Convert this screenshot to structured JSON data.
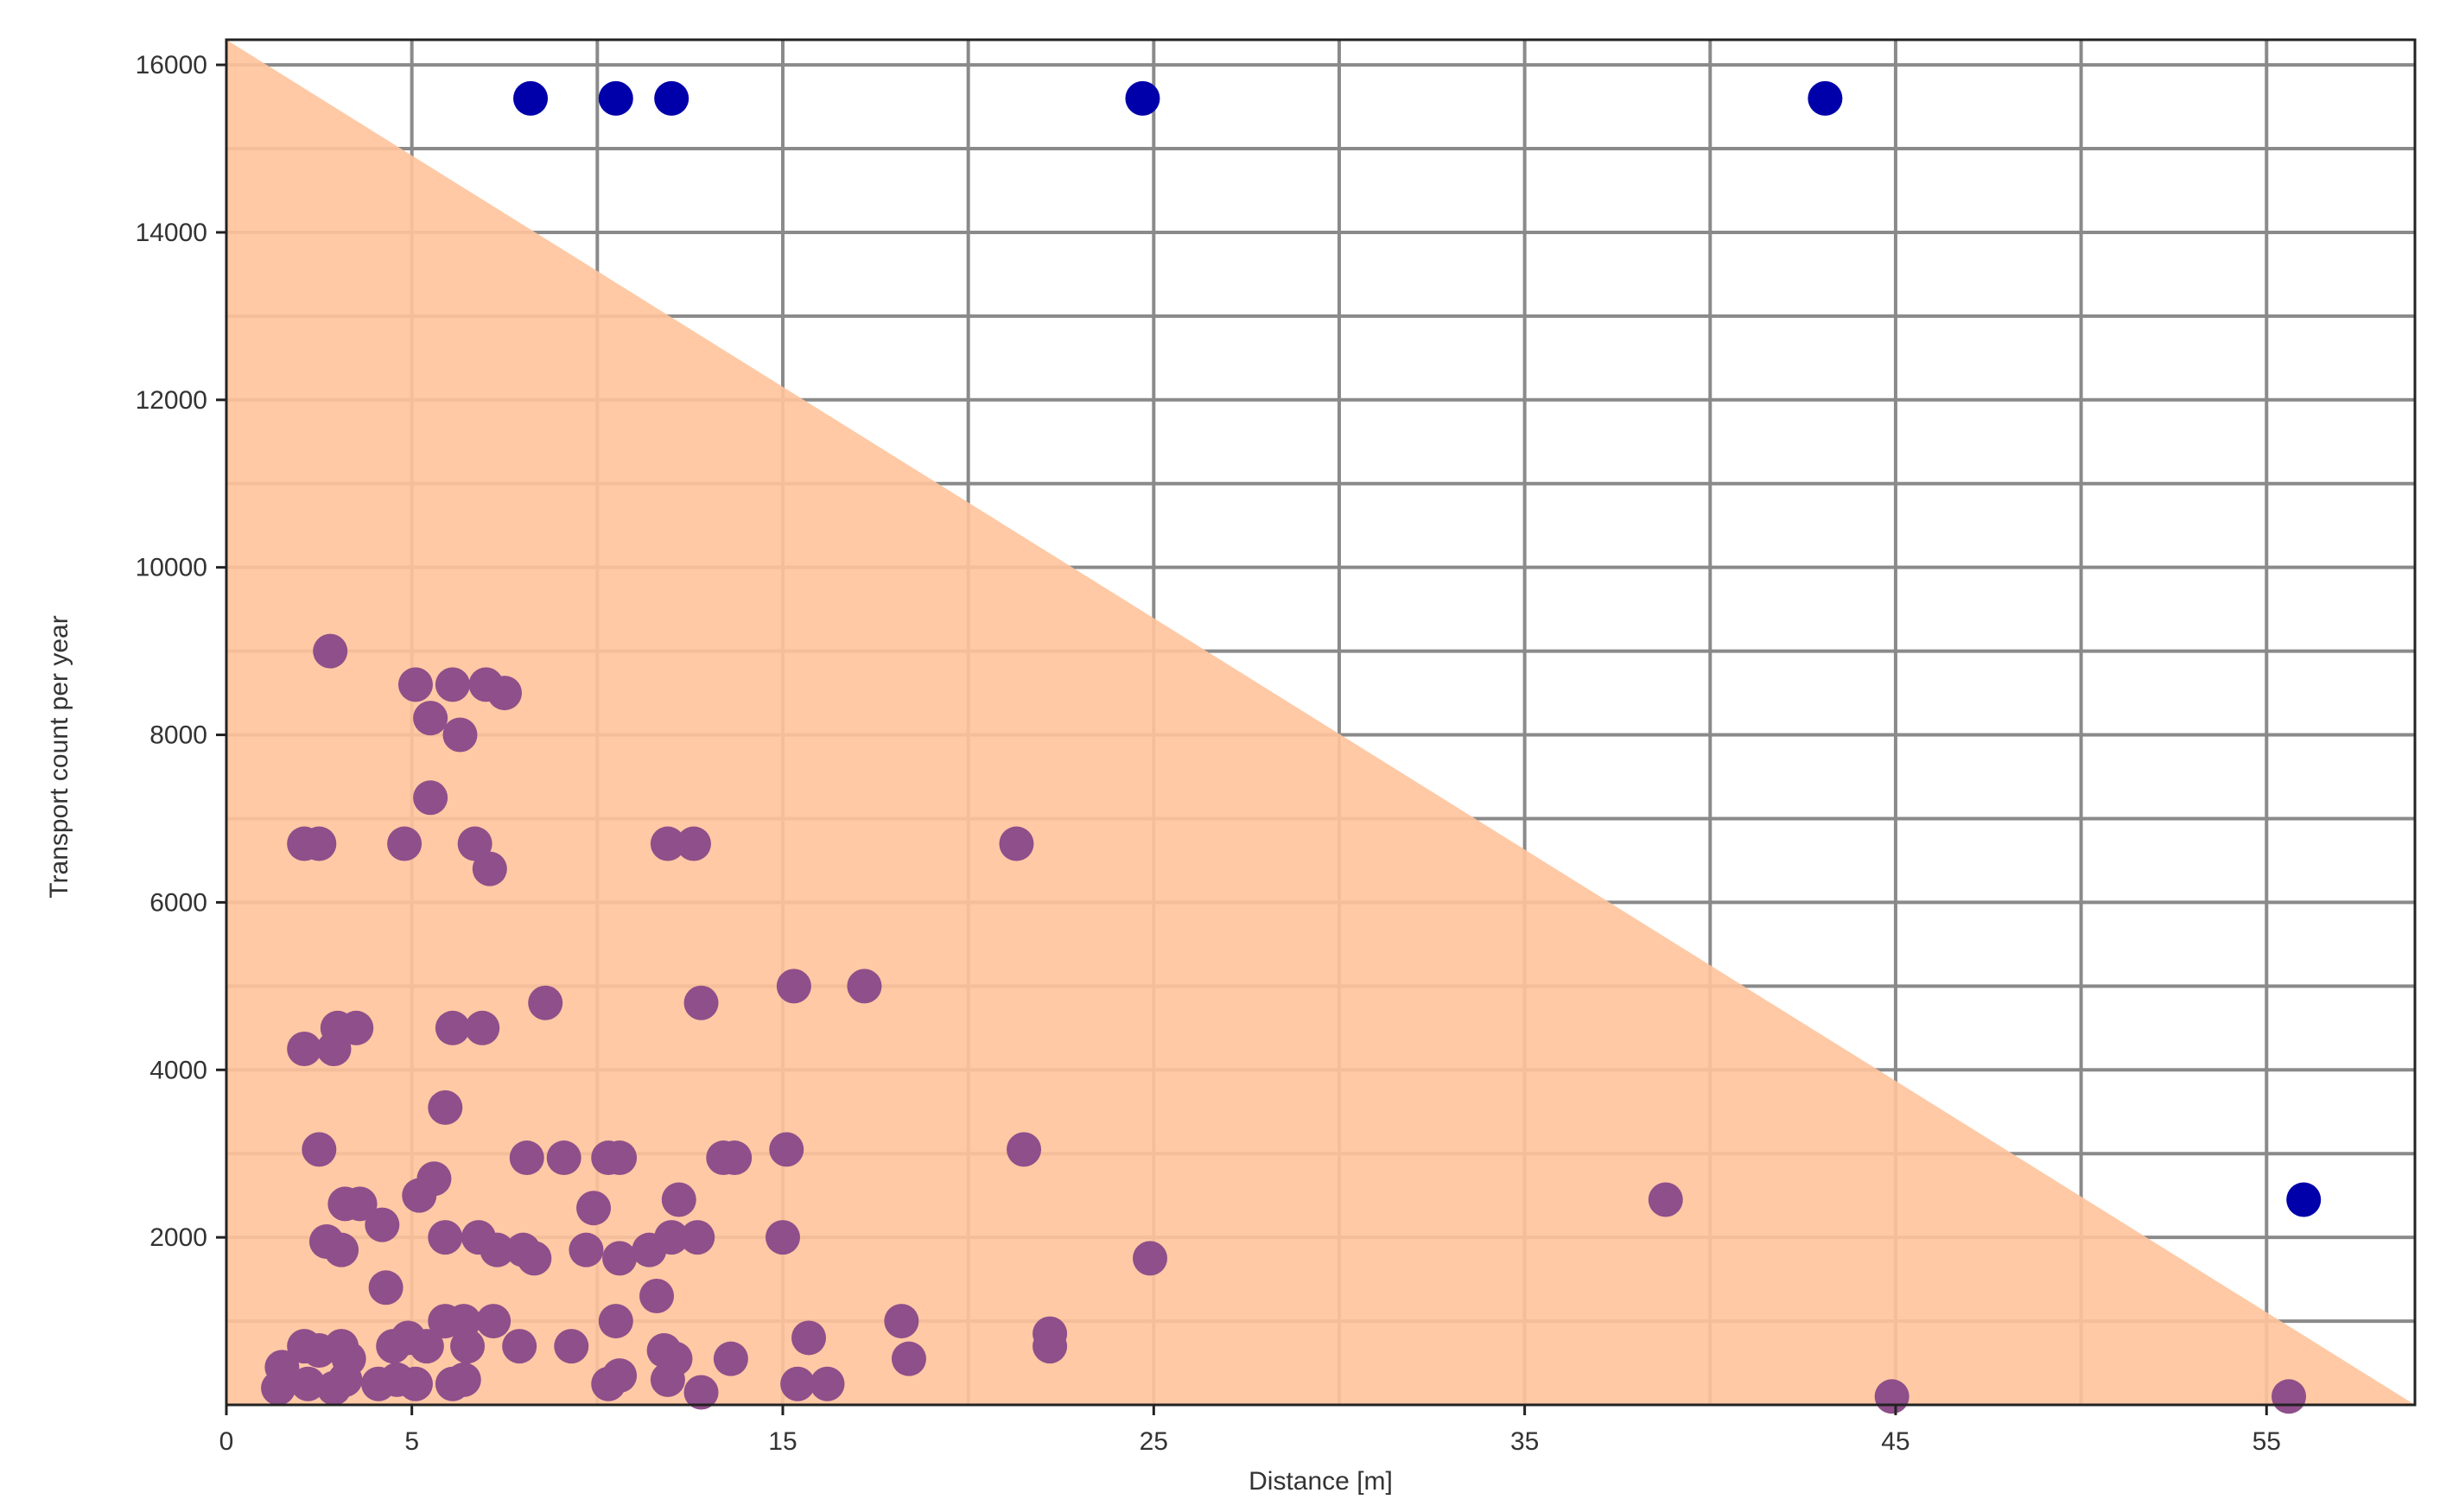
{
  "chart_data": {
    "type": "scatter",
    "title": "",
    "xlabel": "Distance [m]",
    "ylabel": "Transport count per year",
    "xlim": [
      0,
      59
    ],
    "ylim": [
      0,
      16300
    ],
    "x_ticks": [
      {
        "value": 0,
        "label": "0"
      },
      {
        "value": 5,
        "label": "5"
      },
      {
        "value": 15,
        "label": "15"
      },
      {
        "value": 25,
        "label": "25"
      },
      {
        "value": 35,
        "label": "35"
      },
      {
        "value": 45,
        "label": "45"
      },
      {
        "value": 55,
        "label": "55"
      }
    ],
    "x_gridlines": [
      5,
      10,
      15,
      20,
      25,
      30,
      35,
      40,
      45,
      50,
      55
    ],
    "y_ticks": [
      {
        "value": 2000,
        "label": "2000"
      },
      {
        "value": 4000,
        "label": "4000"
      },
      {
        "value": 6000,
        "label": "6000"
      },
      {
        "value": 8000,
        "label": "8000"
      },
      {
        "value": 10000,
        "label": "10000"
      },
      {
        "value": 12000,
        "label": "12000"
      },
      {
        "value": 14000,
        "label": "14000"
      },
      {
        "value": 16000,
        "label": "16000"
      }
    ],
    "y_gridline_step": 1000,
    "grid": true,
    "shaded_region": {
      "shape": "triangle",
      "vertices": [
        [
          0,
          16300
        ],
        [
          0,
          0
        ],
        [
          59,
          0
        ]
      ],
      "color": "#ffc39b"
    },
    "series": [
      {
        "color": "#8e4f8a",
        "points": [
          [
            2.8,
            9000
          ],
          [
            5.1,
            8600
          ],
          [
            6.1,
            8600
          ],
          [
            7.0,
            8600
          ],
          [
            7.5,
            8500
          ],
          [
            5.5,
            8200
          ],
          [
            6.3,
            8000
          ],
          [
            5.5,
            7250
          ],
          [
            2.1,
            6700
          ],
          [
            2.5,
            6700
          ],
          [
            4.8,
            6700
          ],
          [
            6.7,
            6700
          ],
          [
            7.1,
            6400
          ],
          [
            11.9,
            6700
          ],
          [
            12.6,
            6700
          ],
          [
            21.3,
            6700
          ],
          [
            8.6,
            4800
          ],
          [
            12.8,
            4800
          ],
          [
            15.3,
            5000
          ],
          [
            17.2,
            5000
          ],
          [
            2.1,
            4250
          ],
          [
            2.9,
            4250
          ],
          [
            3.0,
            4500
          ],
          [
            3.5,
            4500
          ],
          [
            6.1,
            4500
          ],
          [
            6.9,
            4500
          ],
          [
            5.9,
            3550
          ],
          [
            2.5,
            3050
          ],
          [
            8.1,
            2950
          ],
          [
            9.1,
            2950
          ],
          [
            10.3,
            2950
          ],
          [
            10.6,
            2950
          ],
          [
            13.4,
            2950
          ],
          [
            13.7,
            2950
          ],
          [
            15.1,
            3050
          ],
          [
            21.5,
            3050
          ],
          [
            5.6,
            2700
          ],
          [
            5.2,
            2500
          ],
          [
            3.2,
            2400
          ],
          [
            3.6,
            2400
          ],
          [
            9.9,
            2350
          ],
          [
            12.2,
            2450
          ],
          [
            38.8,
            2450
          ],
          [
            2.7,
            1950
          ],
          [
            3.1,
            1850
          ],
          [
            4.2,
            2150
          ],
          [
            5.9,
            2000
          ],
          [
            6.8,
            2000
          ],
          [
            7.3,
            1850
          ],
          [
            8.0,
            1850
          ],
          [
            8.3,
            1750
          ],
          [
            9.7,
            1850
          ],
          [
            10.6,
            1750
          ],
          [
            11.4,
            1850
          ],
          [
            12.0,
            2000
          ],
          [
            12.7,
            2000
          ],
          [
            15.0,
            2000
          ],
          [
            24.9,
            1750
          ],
          [
            4.3,
            1400
          ],
          [
            11.6,
            1300
          ],
          [
            5.9,
            1000
          ],
          [
            6.4,
            1000
          ],
          [
            7.2,
            1000
          ],
          [
            10.5,
            1000
          ],
          [
            18.2,
            1000
          ],
          [
            22.2,
            850
          ],
          [
            22.2,
            700
          ],
          [
            1.5,
            450
          ],
          [
            2.1,
            700
          ],
          [
            2.5,
            650
          ],
          [
            3.1,
            700
          ],
          [
            3.3,
            550
          ],
          [
            4.5,
            700
          ],
          [
            4.9,
            800
          ],
          [
            5.4,
            700
          ],
          [
            6.5,
            700
          ],
          [
            7.9,
            700
          ],
          [
            9.3,
            700
          ],
          [
            11.8,
            650
          ],
          [
            12.1,
            550
          ],
          [
            13.6,
            550
          ],
          [
            15.7,
            800
          ],
          [
            18.4,
            550
          ],
          [
            1.4,
            200
          ],
          [
            2.2,
            250
          ],
          [
            2.9,
            200
          ],
          [
            3.2,
            300
          ],
          [
            4.1,
            250
          ],
          [
            4.6,
            300
          ],
          [
            5.1,
            250
          ],
          [
            6.1,
            250
          ],
          [
            6.4,
            300
          ],
          [
            10.3,
            250
          ],
          [
            10.6,
            350
          ],
          [
            11.9,
            300
          ],
          [
            12.8,
            150
          ],
          [
            15.4,
            250
          ],
          [
            16.2,
            250
          ],
          [
            44.9,
            100
          ],
          [
            55.6,
            100
          ]
        ]
      },
      {
        "color": "#0000aa",
        "points": [
          [
            8.2,
            15600
          ],
          [
            10.5,
            15600
          ],
          [
            12.0,
            15600
          ],
          [
            24.7,
            15600
          ],
          [
            43.1,
            15600
          ],
          [
            56.0,
            2450
          ]
        ]
      }
    ]
  }
}
